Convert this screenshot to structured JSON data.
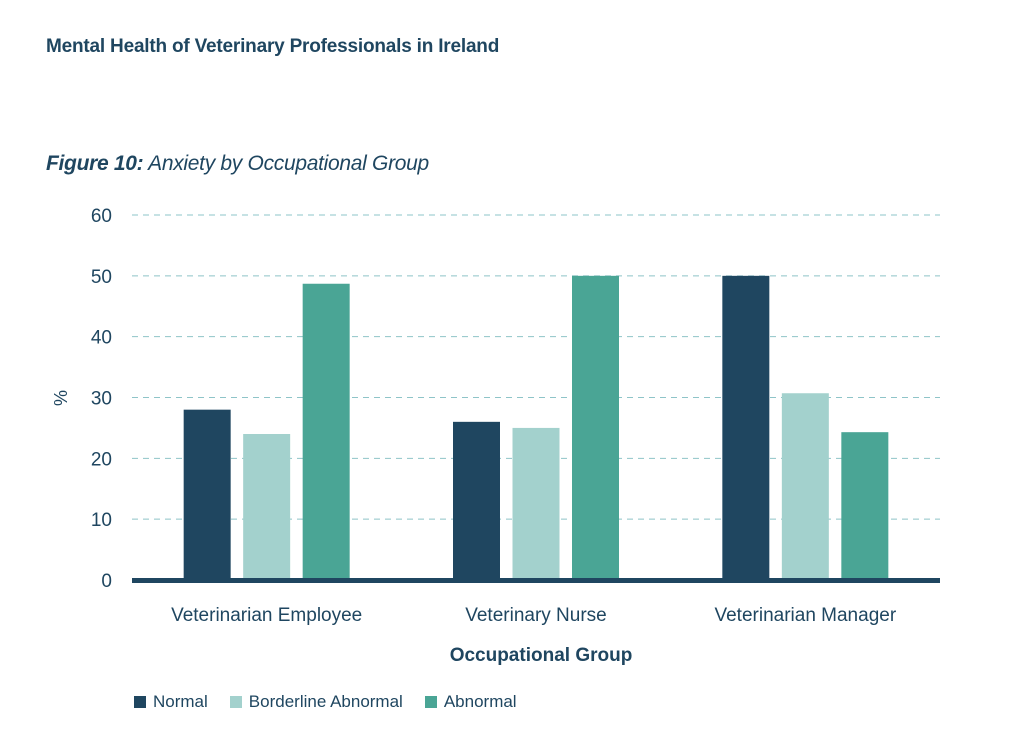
{
  "header": {
    "title": "Mental Health of Veterinary Professionals in Ireland"
  },
  "figure": {
    "label": "Figure 10:",
    "caption": "Anxiety by Occupational Group"
  },
  "colors": {
    "normal": "#1f4660",
    "borderline": "#a3d1cd",
    "abnormal": "#4aa595",
    "grid": "#8ec4c8",
    "axis": "#1f4660",
    "text": "#1f4660"
  },
  "chart_data": {
    "type": "bar",
    "categories": [
      "Veterinarian Employee",
      "Veterinary Nurse",
      "Veterinarian Manager"
    ],
    "series": [
      {
        "name": "Normal",
        "values": [
          28,
          26,
          50
        ],
        "color": "#1f4660"
      },
      {
        "name": "Borderline Abnormal",
        "values": [
          24,
          25,
          30.7
        ],
        "color": "#a3d1cd"
      },
      {
        "name": "Abnormal",
        "values": [
          48.7,
          50,
          24.3
        ],
        "color": "#4aa595"
      }
    ],
    "title": "",
    "xlabel": "Occupational Group",
    "ylabel": "%",
    "ylim": [
      0,
      60
    ],
    "yticks": [
      "0",
      "10",
      "20",
      "30",
      "40",
      "50",
      "60"
    ],
    "grid": true,
    "legend_position": "bottom-left"
  }
}
